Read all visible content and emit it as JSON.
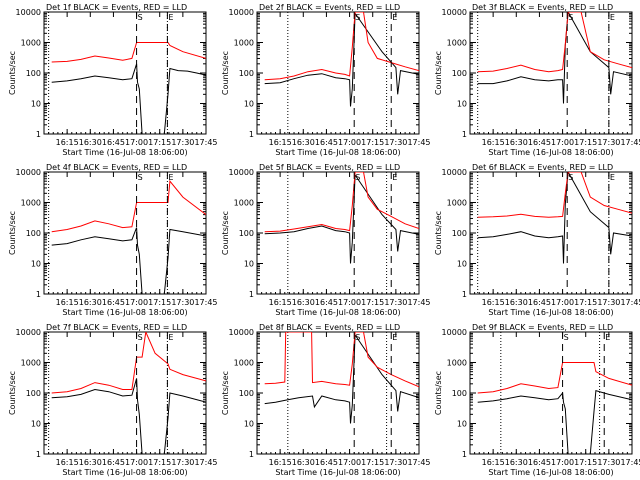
{
  "ylabel": "Counts/sec",
  "xlabel": "Start Time (16-Jul-08 18:06:00)",
  "x_ticks": [
    "16:15",
    "16:30",
    "16:45",
    "17:00",
    "17:15",
    "17:30",
    "17:45"
  ],
  "y_ticks": [
    "1",
    "10",
    "100",
    "1000",
    "10000"
  ],
  "colors": {
    "events": "#000000",
    "lld": "#ff0000"
  },
  "chart_data": [
    {
      "type": "line",
      "title": "Det 1f BLACK = Events, RED = LLD",
      "ylim": [
        1,
        10000
      ],
      "yscale": "log",
      "markers": [
        {
          "x": 17.0,
          "label": "S"
        },
        {
          "x": 17.333,
          "label": "E"
        }
      ],
      "dotted_lines": [
        16.05,
        17.333
      ],
      "series": [
        {
          "name": "Events",
          "x": [
            16.083,
            16.25,
            16.4,
            16.55,
            16.7,
            16.85,
            16.95,
            17.0,
            17.01,
            17.03,
            17.06,
            17.3,
            17.34,
            17.36,
            17.45,
            17.55,
            17.65,
            17.75
          ],
          "y": [
            50,
            55,
            65,
            80,
            70,
            60,
            65,
            200,
            50,
            30,
            1,
            1,
            20,
            140,
            120,
            115,
            100,
            85
          ]
        },
        {
          "name": "LLD",
          "x": [
            16.083,
            16.25,
            16.4,
            16.55,
            16.7,
            16.85,
            16.95,
            17.0,
            17.01,
            17.03,
            17.06,
            17.3,
            17.34,
            17.36,
            17.5,
            17.75
          ],
          "y": [
            230,
            240,
            280,
            360,
            310,
            260,
            300,
            1000,
            1000,
            1000,
            1000,
            1000,
            1000,
            800,
            500,
            300
          ]
        }
      ]
    },
    {
      "type": "line",
      "title": "Det 2f BLACK = Events, RED = LLD",
      "ylim": [
        1,
        10000
      ],
      "yscale": "log",
      "markers": [
        {
          "x": 17.05,
          "label": "S"
        },
        {
          "x": 17.45,
          "label": "E"
        }
      ],
      "dotted_lines": [
        16.333,
        17.4
      ],
      "series": [
        {
          "name": "Events",
          "x": [
            16.083,
            16.25,
            16.4,
            16.55,
            16.7,
            16.85,
            16.95,
            17.0,
            17.01,
            17.03,
            17.06,
            17.35,
            17.5,
            17.52,
            17.55,
            17.75
          ],
          "y": [
            45,
            48,
            65,
            85,
            95,
            70,
            65,
            60,
            8,
            30,
            9000,
            500,
            150,
            20,
            120,
            90
          ]
        },
        {
          "name": "LLD",
          "x": [
            16.083,
            16.25,
            16.4,
            16.55,
            16.7,
            16.85,
            16.95,
            17.0,
            17.03,
            17.06,
            17.15,
            17.2,
            17.3,
            17.45,
            17.6,
            17.75
          ],
          "y": [
            60,
            65,
            80,
            110,
            130,
            100,
            90,
            80,
            700,
            10000,
            10000,
            1000,
            300,
            220,
            160,
            120
          ]
        }
      ]
    },
    {
      "type": "line",
      "title": "Det 3f BLACK = Events, RED = LLD",
      "ylim": [
        1,
        10000
      ],
      "yscale": "log",
      "markers": [
        {
          "x": 17.05,
          "label": "S"
        },
        {
          "x": 17.5,
          "label": "E"
        }
      ],
      "dotted_lines": [
        16.083,
        17.5
      ],
      "series": [
        {
          "name": "Events",
          "x": [
            16.083,
            16.25,
            16.4,
            16.55,
            16.7,
            16.85,
            16.95,
            17.0,
            17.01,
            17.03,
            17.06,
            17.3,
            17.5,
            17.52,
            17.55,
            17.75
          ],
          "y": [
            45,
            45,
            55,
            75,
            60,
            55,
            60,
            60,
            10,
            800,
            10000,
            500,
            150,
            20,
            110,
            80
          ]
        },
        {
          "name": "LLD",
          "x": [
            16.083,
            16.25,
            16.4,
            16.55,
            16.7,
            16.85,
            16.95,
            17.0,
            17.03,
            17.06,
            17.2,
            17.3,
            17.45,
            17.6,
            17.75
          ],
          "y": [
            110,
            115,
            140,
            180,
            130,
            110,
            120,
            130,
            900,
            10000,
            10000,
            500,
            270,
            200,
            150
          ]
        }
      ]
    },
    {
      "type": "line",
      "title": "Det 4f BLACK = Events, RED = LLD",
      "ylim": [
        1,
        10000
      ],
      "yscale": "log",
      "markers": [
        {
          "x": 17.0,
          "label": "S"
        },
        {
          "x": 17.333,
          "label": "E"
        }
      ],
      "dotted_lines": [
        16.05,
        17.333
      ],
      "series": [
        {
          "name": "Events",
          "x": [
            16.083,
            16.25,
            16.4,
            16.55,
            16.7,
            16.85,
            16.95,
            17.0,
            17.01,
            17.03,
            17.06,
            17.3,
            17.34,
            17.36,
            17.5,
            17.75
          ],
          "y": [
            40,
            45,
            60,
            75,
            65,
            55,
            60,
            150,
            40,
            20,
            1,
            1,
            15,
            130,
            110,
            80
          ]
        },
        {
          "name": "LLD",
          "x": [
            16.083,
            16.25,
            16.4,
            16.55,
            16.7,
            16.85,
            16.95,
            17.0,
            17.01,
            17.03,
            17.06,
            17.3,
            17.34,
            17.36,
            17.5,
            17.75
          ],
          "y": [
            110,
            130,
            170,
            250,
            200,
            150,
            160,
            1000,
            1000,
            1000,
            1000,
            1000,
            1000,
            5000,
            1500,
            400
          ]
        }
      ]
    },
    {
      "type": "line",
      "title": "Det 5f BLACK = Events, RED = LLD",
      "ylim": [
        1,
        10000
      ],
      "yscale": "log",
      "markers": [
        {
          "x": 17.05,
          "label": "S"
        },
        {
          "x": 17.45,
          "label": "E"
        }
      ],
      "dotted_lines": [
        16.333,
        17.4
      ],
      "series": [
        {
          "name": "Events",
          "x": [
            16.083,
            16.25,
            16.4,
            16.55,
            16.7,
            16.85,
            16.95,
            17.0,
            17.01,
            17.03,
            17.06,
            17.35,
            17.5,
            17.52,
            17.55,
            17.75
          ],
          "y": [
            95,
            100,
            110,
            140,
            170,
            120,
            110,
            100,
            10,
            50,
            8000,
            400,
            130,
            25,
            120,
            90
          ]
        },
        {
          "name": "LLD",
          "x": [
            16.083,
            16.25,
            16.4,
            16.55,
            16.7,
            16.85,
            16.95,
            17.0,
            17.03,
            17.06,
            17.15,
            17.2,
            17.3,
            17.45,
            17.6,
            17.75
          ],
          "y": [
            110,
            115,
            135,
            160,
            190,
            140,
            130,
            120,
            800,
            10000,
            10000,
            1500,
            600,
            350,
            200,
            140
          ]
        }
      ]
    },
    {
      "type": "line",
      "title": "Det 6f BLACK = Events, RED = LLD",
      "ylim": [
        1,
        10000
      ],
      "yscale": "log",
      "markers": [
        {
          "x": 17.05,
          "label": "S"
        },
        {
          "x": 17.5,
          "label": "E"
        }
      ],
      "dotted_lines": [
        16.083,
        17.5
      ],
      "series": [
        {
          "name": "Events",
          "x": [
            16.083,
            16.25,
            16.4,
            16.55,
            16.7,
            16.85,
            16.95,
            17.0,
            17.01,
            17.03,
            17.06,
            17.3,
            17.5,
            17.52,
            17.55,
            17.75
          ],
          "y": [
            70,
            75,
            90,
            110,
            80,
            70,
            75,
            80,
            10,
            900,
            10000,
            500,
            150,
            20,
            100,
            80
          ]
        },
        {
          "name": "LLD",
          "x": [
            16.083,
            16.25,
            16.4,
            16.55,
            16.7,
            16.85,
            16.95,
            17.0,
            17.03,
            17.06,
            17.2,
            17.3,
            17.45,
            17.6,
            17.75
          ],
          "y": [
            330,
            340,
            360,
            410,
            350,
            330,
            340,
            350,
            2000,
            10000,
            10000,
            1500,
            800,
            600,
            450
          ]
        }
      ]
    },
    {
      "type": "line",
      "title": "Det 7f BLACK = Events, RED = LLD",
      "ylim": [
        1,
        10000
      ],
      "yscale": "log",
      "markers": [
        {
          "x": 17.0,
          "label": "S"
        },
        {
          "x": 17.333,
          "label": "E"
        }
      ],
      "dotted_lines": [
        16.05,
        17.333
      ],
      "series": [
        {
          "name": "Events",
          "x": [
            16.083,
            16.25,
            16.4,
            16.55,
            16.7,
            16.85,
            16.95,
            17.0,
            17.01,
            17.03,
            17.06,
            17.3,
            17.34,
            17.36,
            17.5,
            17.75
          ],
          "y": [
            70,
            75,
            90,
            130,
            110,
            80,
            85,
            300,
            60,
            20,
            1,
            1,
            15,
            100,
            80,
            50
          ]
        },
        {
          "name": "LLD",
          "x": [
            16.083,
            16.25,
            16.4,
            16.55,
            16.7,
            16.85,
            16.95,
            17.0,
            17.01,
            17.03,
            17.06,
            17.1,
            17.2,
            17.34,
            17.36,
            17.5,
            17.75
          ],
          "y": [
            100,
            110,
            140,
            220,
            180,
            130,
            130,
            1500,
            1500,
            1500,
            1500,
            10000,
            2000,
            900,
            600,
            400,
            250
          ]
        }
      ]
    },
    {
      "type": "line",
      "title": "Det 8f BLACK = Events, RED = LLD",
      "ylim": [
        1,
        10000
      ],
      "yscale": "log",
      "markers": [
        {
          "x": 17.05,
          "label": "S"
        },
        {
          "x": 17.45,
          "label": "E"
        }
      ],
      "dotted_lines": [
        16.333,
        17.4
      ],
      "series": [
        {
          "name": "Events",
          "x": [
            16.083,
            16.2,
            16.333,
            16.45,
            16.6,
            16.62,
            16.7,
            16.85,
            16.95,
            17.0,
            17.01,
            17.03,
            17.06,
            17.35,
            17.5,
            17.52,
            17.55,
            17.75
          ],
          "y": [
            45,
            50,
            60,
            70,
            80,
            35,
            80,
            60,
            55,
            50,
            10,
            40,
            8000,
            400,
            120,
            25,
            110,
            70
          ]
        },
        {
          "name": "LLD",
          "x": [
            16.083,
            16.2,
            16.3,
            16.31,
            16.333,
            16.59,
            16.6,
            16.7,
            16.85,
            16.95,
            17.0,
            17.03,
            17.06,
            17.15,
            17.2,
            17.3,
            17.45,
            17.6,
            17.75
          ],
          "y": [
            200,
            210,
            230,
            10000,
            10000,
            10000,
            220,
            240,
            200,
            190,
            180,
            900,
            10000,
            10000,
            1500,
            700,
            400,
            250,
            160
          ]
        }
      ]
    },
    {
      "type": "line",
      "title": "Det 9f BLACK = Events, RED = LLD",
      "ylim": [
        1,
        10000
      ],
      "yscale": "log",
      "markers": [
        {
          "x": 17.0,
          "label": "S"
        },
        {
          "x": 17.45,
          "label": "E"
        }
      ],
      "dotted_lines": [
        16.333,
        17.4
      ],
      "series": [
        {
          "name": "Events",
          "x": [
            16.083,
            16.25,
            16.4,
            16.55,
            16.7,
            16.85,
            16.95,
            17.0,
            17.01,
            17.03,
            17.06,
            17.3,
            17.34,
            17.36,
            17.5,
            17.75
          ],
          "y": [
            50,
            55,
            65,
            80,
            70,
            60,
            65,
            100,
            50,
            30,
            1,
            1,
            25,
            120,
            90,
            60
          ]
        },
        {
          "name": "LLD",
          "x": [
            16.083,
            16.25,
            16.4,
            16.55,
            16.7,
            16.85,
            16.95,
            17.0,
            17.01,
            17.03,
            17.06,
            17.3,
            17.34,
            17.36,
            17.5,
            17.75
          ],
          "y": [
            100,
            110,
            140,
            200,
            170,
            140,
            150,
            1000,
            1000,
            1000,
            1000,
            1000,
            1000,
            500,
            300,
            180
          ]
        }
      ]
    }
  ]
}
